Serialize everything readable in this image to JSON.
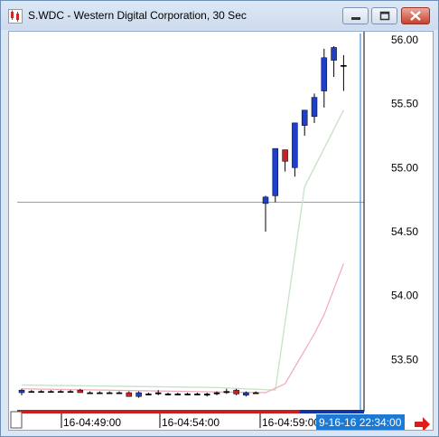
{
  "window": {
    "title": "S.WDC - Western Digital Corporation, 30 Sec",
    "icon": "chart-app-icon",
    "buttons": [
      "minimize-icon",
      "maximize-icon",
      "close-icon"
    ]
  },
  "chart": {
    "price_ticks": [
      "56.00",
      "55.50",
      "55.00",
      "54.50",
      "54.00",
      "53.50"
    ],
    "time_ticks": [
      "16-04:49:00",
      "16-04:54:00",
      "16-04:59:00"
    ],
    "cursor_time_label": "9-16-16 22:34:00",
    "scroll_icon": "red-arrow-right-icon",
    "colors": {
      "up_candle": "#1e40c8",
      "down_candle": "#cc2020",
      "ma_fast": "#c9e3c9",
      "ma_slow": "#f2a8bc",
      "cursor_line": "#1d7ad4",
      "price_line": "#9aa0a6",
      "time_bar": "#c81e1e"
    }
  },
  "chart_data": {
    "type": "candlestick",
    "ylim": [
      53.15,
      56.05
    ],
    "price_line": 54.73,
    "candles": [
      {
        "o": 53.24,
        "h": 53.27,
        "l": 53.22,
        "c": 53.26
      },
      {
        "o": 53.25,
        "h": 53.26,
        "l": 53.24,
        "c": 53.25
      },
      {
        "o": 53.25,
        "h": 53.26,
        "l": 53.24,
        "c": 53.25
      },
      {
        "o": 53.25,
        "h": 53.26,
        "l": 53.24,
        "c": 53.25
      },
      {
        "o": 53.25,
        "h": 53.26,
        "l": 53.24,
        "c": 53.25
      },
      {
        "o": 53.25,
        "h": 53.26,
        "l": 53.24,
        "c": 53.25
      },
      {
        "o": 53.26,
        "h": 53.27,
        "l": 53.24,
        "c": 53.24
      },
      {
        "o": 53.24,
        "h": 53.25,
        "l": 53.23,
        "c": 53.24
      },
      {
        "o": 53.24,
        "h": 53.25,
        "l": 53.23,
        "c": 53.24
      },
      {
        "o": 53.24,
        "h": 53.25,
        "l": 53.23,
        "c": 53.24
      },
      {
        "o": 53.24,
        "h": 53.25,
        "l": 53.23,
        "c": 53.24
      },
      {
        "o": 53.24,
        "h": 53.25,
        "l": 53.21,
        "c": 53.21
      },
      {
        "o": 53.21,
        "h": 53.25,
        "l": 53.2,
        "c": 53.24
      },
      {
        "o": 53.23,
        "h": 53.24,
        "l": 53.22,
        "c": 53.23
      },
      {
        "o": 53.23,
        "h": 53.26,
        "l": 53.22,
        "c": 53.24
      },
      {
        "o": 53.23,
        "h": 53.24,
        "l": 53.22,
        "c": 53.23
      },
      {
        "o": 53.23,
        "h": 53.24,
        "l": 53.22,
        "c": 53.23
      },
      {
        "o": 53.23,
        "h": 53.24,
        "l": 53.22,
        "c": 53.23
      },
      {
        "o": 53.23,
        "h": 53.24,
        "l": 53.22,
        "c": 53.23
      },
      {
        "o": 53.22,
        "h": 53.24,
        "l": 53.21,
        "c": 53.23
      },
      {
        "o": 53.23,
        "h": 53.25,
        "l": 53.22,
        "c": 53.24
      },
      {
        "o": 53.24,
        "h": 53.27,
        "l": 53.23,
        "c": 53.25
      },
      {
        "o": 53.26,
        "h": 53.27,
        "l": 53.22,
        "c": 53.23
      },
      {
        "o": 53.22,
        "h": 53.25,
        "l": 53.21,
        "c": 53.24
      },
      {
        "o": 53.24,
        "h": 53.25,
        "l": 53.23,
        "c": 53.24
      },
      {
        "o": 54.72,
        "h": 54.78,
        "l": 54.5,
        "c": 54.77
      },
      {
        "o": 54.78,
        "h": 55.15,
        "l": 54.73,
        "c": 55.15
      },
      {
        "o": 55.14,
        "h": 55.14,
        "l": 54.97,
        "c": 55.05
      },
      {
        "o": 55.0,
        "h": 55.35,
        "l": 54.93,
        "c": 55.35
      },
      {
        "o": 55.33,
        "h": 55.45,
        "l": 55.25,
        "c": 55.45
      },
      {
        "o": 55.4,
        "h": 55.58,
        "l": 55.35,
        "c": 55.55
      },
      {
        "o": 55.6,
        "h": 55.93,
        "l": 55.47,
        "c": 55.86
      },
      {
        "o": 55.84,
        "h": 55.95,
        "l": 55.71,
        "c": 55.94
      },
      {
        "o": 55.8,
        "h": 55.88,
        "l": 55.6,
        "c": 55.8
      }
    ],
    "ma_fast": [
      [
        0,
        53.3
      ],
      [
        20,
        53.28
      ],
      [
        26,
        53.26
      ],
      [
        29,
        54.85
      ],
      [
        33,
        55.45
      ]
    ],
    "ma_slow": [
      [
        0,
        53.27
      ],
      [
        25,
        53.24
      ],
      [
        27,
        53.31
      ],
      [
        30,
        53.7
      ],
      [
        31,
        53.85
      ],
      [
        33,
        54.25
      ]
    ]
  }
}
